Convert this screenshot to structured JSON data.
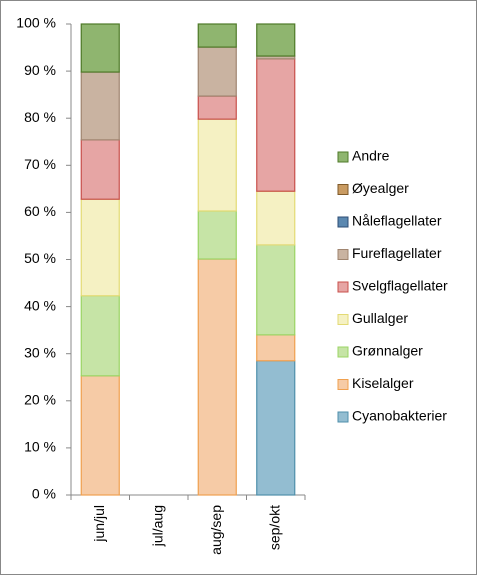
{
  "chart_data": {
    "type": "stacked_bar",
    "categories": [
      "jun/jul",
      "jul/aug",
      "aug/sep",
      "sep/okt"
    ],
    "series": [
      {
        "name": "Cyanobakterier",
        "color": "#93bdd1",
        "edgecolor": "#4f8fab",
        "values": [
          0,
          null,
          0,
          28.5
        ]
      },
      {
        "name": "Kiselalger",
        "color": "#f6cba6",
        "edgecolor": "#f0a04f",
        "values": [
          25.3,
          null,
          50.1,
          5.5
        ]
      },
      {
        "name": "Grønnalger",
        "color": "#c6e4a6",
        "edgecolor": "#9bd464",
        "values": [
          17,
          null,
          10.2,
          19.1
        ]
      },
      {
        "name": "Gullalger",
        "color": "#f5f1c3",
        "edgecolor": "#e3da74",
        "values": [
          20.5,
          null,
          19.5,
          11.4
        ]
      },
      {
        "name": "Svelgflagellater",
        "color": "#e6a5a4",
        "edgecolor": "#c8504b",
        "values": [
          12.6,
          null,
          4.9,
          28.1
        ]
      },
      {
        "name": "Fureflagellater",
        "color": "#c9b3a1",
        "edgecolor": "#a08570",
        "values": [
          14.4,
          null,
          10.4,
          0.6
        ]
      },
      {
        "name": "Nåleflagellater",
        "color": "#5b88b0",
        "edgecolor": "#2c4d75",
        "values": [
          0,
          null,
          0,
          0
        ]
      },
      {
        "name": "Øyealger",
        "color": "#c99b62",
        "edgecolor": "#7f5a2a",
        "values": [
          0,
          null,
          0,
          0
        ]
      },
      {
        "name": "Andre",
        "color": "#8fb56f",
        "edgecolor": "#4f7a28",
        "values": [
          10.2,
          null,
          4.9,
          6.8
        ]
      }
    ],
    "ylim": [
      0,
      100
    ],
    "yticks": [
      {
        "value": 0,
        "label": "0 %"
      },
      {
        "value": 10,
        "label": "10 %"
      },
      {
        "value": 20,
        "label": "20 %"
      },
      {
        "value": 30,
        "label": "30 %"
      },
      {
        "value": 40,
        "label": "40 %"
      },
      {
        "value": 50,
        "label": "50 %"
      },
      {
        "value": 60,
        "label": "60 %"
      },
      {
        "value": 70,
        "label": "70 %"
      },
      {
        "value": 80,
        "label": "80 %"
      },
      {
        "value": 90,
        "label": "90 %"
      },
      {
        "value": 100,
        "label": "100 %"
      }
    ],
    "grid": false,
    "legend": "right"
  }
}
